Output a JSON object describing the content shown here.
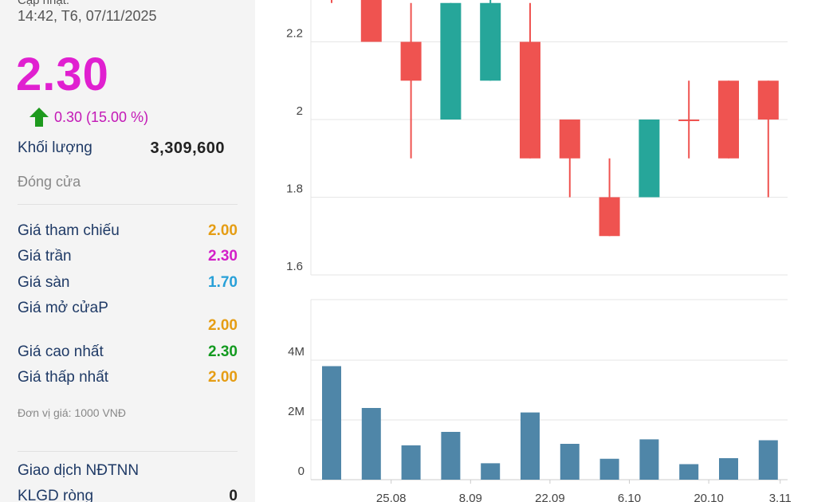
{
  "sidebar": {
    "update_label": "Cập nhật:",
    "update_time": "14:42, T6, 07/11/2025",
    "price": "2.30",
    "change_icon": "up-arrow-icon",
    "change": "0.30 (15.00 %)",
    "volume_label": "Khối lượng",
    "volume_value": "3,309,600",
    "close_label": "Đóng cửa",
    "ref_label": "Giá tham chiếu",
    "ref_value": "2.00",
    "ceiling_label": "Giá trần",
    "ceiling_value": "2.30",
    "floor_label": "Giá sàn",
    "floor_value": "1.70",
    "open_label": "Giá mở cửaP",
    "open_value": "2.00",
    "high_label": "Giá cao nhất",
    "high_value": "2.30",
    "low_label": "Giá thấp nhất",
    "low_value": "2.00",
    "unit_note": "Đơn vị giá: 1000 VNĐ",
    "foreign_title": "Giao dịch NĐTNN",
    "net_label": "KLGD ròng",
    "net_value": "0"
  },
  "colors": {
    "up": "#26a69a",
    "down": "#ef5350",
    "volume": "#4f86a8",
    "price_up": "#e020d0"
  },
  "chart_data": [
    {
      "type": "candlestick",
      "ylim": [
        1.6,
        2.35
      ],
      "y_ticks": [
        "1.6",
        "1.8",
        "2",
        "2.2"
      ],
      "candles": [
        {
          "open": 2.35,
          "close": 2.35,
          "high": 2.35,
          "low": 2.3
        },
        {
          "open": 2.35,
          "close": 2.2,
          "high": 2.35,
          "low": 2.2
        },
        {
          "open": 2.2,
          "close": 2.1,
          "high": 2.3,
          "low": 1.9
        },
        {
          "open": 2.0,
          "close": 2.3,
          "high": 2.3,
          "low": 2.0
        },
        {
          "open": 2.1,
          "close": 2.3,
          "high": 2.35,
          "low": 2.1
        },
        {
          "open": 2.2,
          "close": 1.9,
          "high": 2.3,
          "low": 1.9
        },
        {
          "open": 2.0,
          "close": 1.9,
          "high": 2.0,
          "low": 1.8
        },
        {
          "open": 1.8,
          "close": 1.7,
          "high": 1.9,
          "low": 1.7
        },
        {
          "open": 1.8,
          "close": 2.0,
          "high": 2.0,
          "low": 1.8
        },
        {
          "open": 2.0,
          "close": 2.0,
          "high": 2.1,
          "low": 1.9
        },
        {
          "open": 2.1,
          "close": 1.9,
          "high": 2.1,
          "low": 1.9
        },
        {
          "open": 2.1,
          "close": 2.0,
          "high": 2.1,
          "low": 1.8
        }
      ]
    },
    {
      "type": "bar",
      "ylim": [
        0,
        5000000
      ],
      "y_ticks": [
        {
          "label": "0",
          "value": 0
        },
        {
          "label": "2M",
          "value": 2000000
        },
        {
          "label": "4M",
          "value": 4000000
        }
      ],
      "values": [
        3800000,
        2400000,
        1150000,
        1600000,
        550000,
        2250000,
        1200000,
        700000,
        1350000,
        520000,
        720000,
        1320000
      ],
      "x_labels": [
        {
          "index": 1.5,
          "label": "25.08"
        },
        {
          "index": 3.5,
          "label": "8.09"
        },
        {
          "index": 5.5,
          "label": "22.09"
        },
        {
          "index": 7.5,
          "label": "6.10"
        },
        {
          "index": 9.5,
          "label": "20.10"
        },
        {
          "index": 11.3,
          "label": "3.11"
        }
      ]
    }
  ]
}
